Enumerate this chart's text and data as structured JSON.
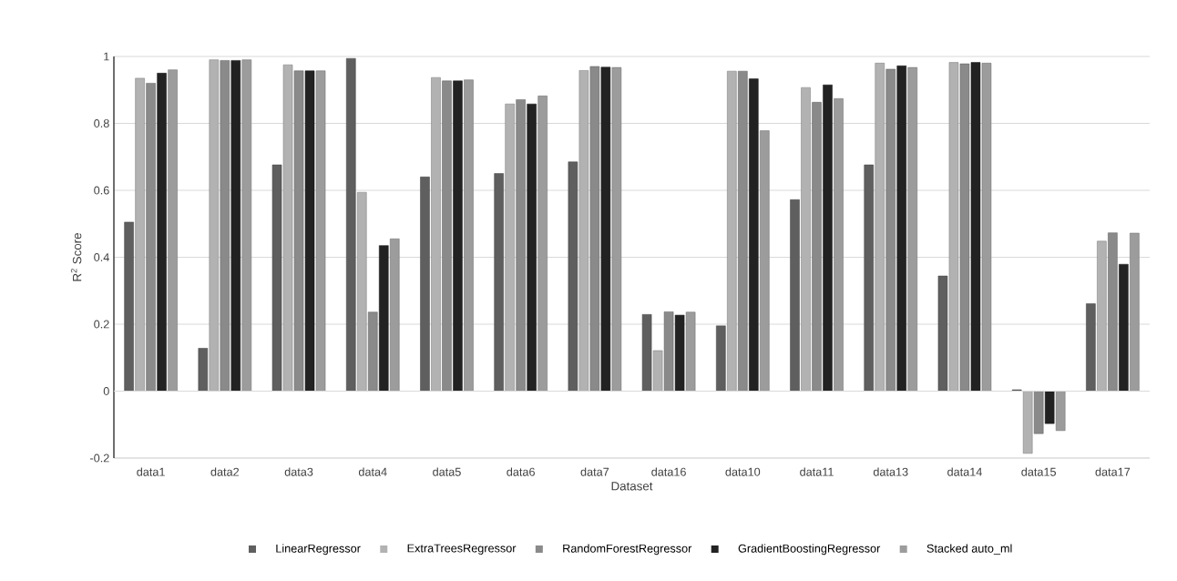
{
  "chart_data": {
    "type": "bar",
    "xlabel": "Dataset",
    "ylabel": "R$^{2}$ Score",
    "categories": [
      "data1",
      "data2",
      "data3",
      "data4",
      "data5",
      "data6",
      "data7",
      "data16",
      "data10",
      "data11",
      "data13",
      "data14",
      "data15",
      "data17"
    ],
    "series": [
      {
        "name": "LinearRegressor",
        "color": "#5f5f5f",
        "values": [
          0.505,
          0.128,
          0.676,
          0.994,
          0.64,
          0.65,
          0.685,
          0.229,
          0.195,
          0.572,
          0.676,
          0.344,
          0.004,
          0.261
        ]
      },
      {
        "name": "ExtraTreesRegressor",
        "color": "#b2b2b2",
        "values": [
          0.935,
          0.99,
          0.975,
          0.594,
          0.937,
          0.858,
          0.958,
          0.121,
          0.956,
          0.907,
          0.98,
          0.982,
          -0.186,
          0.448
        ]
      },
      {
        "name": "RandomForestRegressor",
        "color": "#8a8a8a",
        "values": [
          0.92,
          0.988,
          0.957,
          0.236,
          0.927,
          0.871,
          0.97,
          0.237,
          0.956,
          0.863,
          0.962,
          0.978,
          -0.127,
          0.473
        ]
      },
      {
        "name": "GradientBoostingRegressor",
        "color": "#222222",
        "values": [
          0.95,
          0.988,
          0.957,
          0.435,
          0.927,
          0.858,
          0.968,
          0.227,
          0.933,
          0.915,
          0.972,
          0.982,
          -0.097,
          0.379
        ]
      },
      {
        "name": "Stacked auto_ml",
        "color": "#9c9c9c",
        "values": [
          0.96,
          0.99,
          0.957,
          0.455,
          0.93,
          0.882,
          0.967,
          0.236,
          0.778,
          0.874,
          0.967,
          0.98,
          -0.118,
          0.472
        ]
      }
    ],
    "ylim": [
      -0.2,
      1
    ],
    "yticks": [
      -0.2,
      0,
      0.2,
      0.4,
      0.6,
      0.8,
      1
    ],
    "grid": "y",
    "legend": "bottom"
  }
}
